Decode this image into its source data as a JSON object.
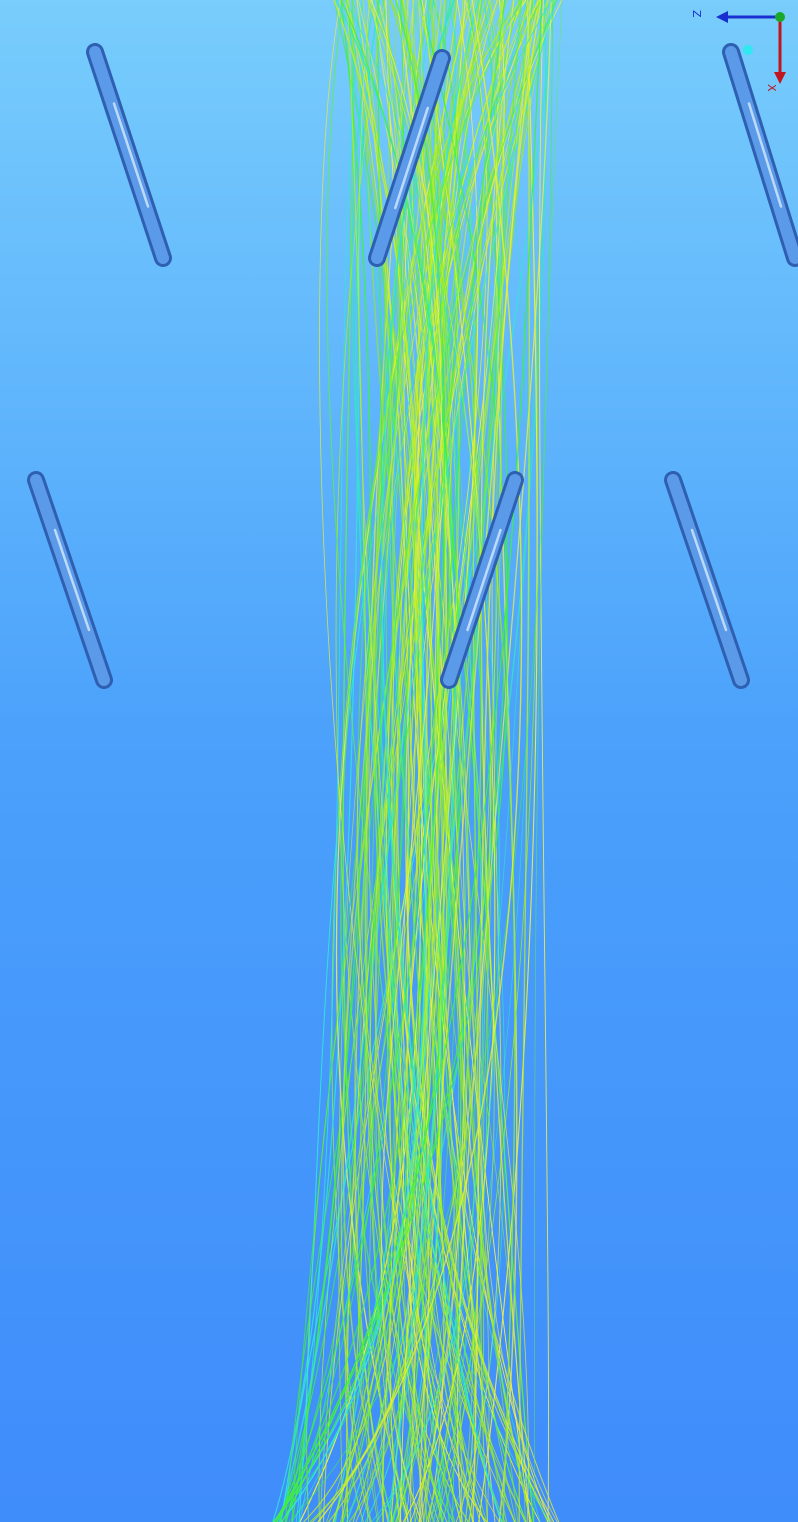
{
  "axis_triad": {
    "labels": [
      "Z",
      "X"
    ]
  }
}
